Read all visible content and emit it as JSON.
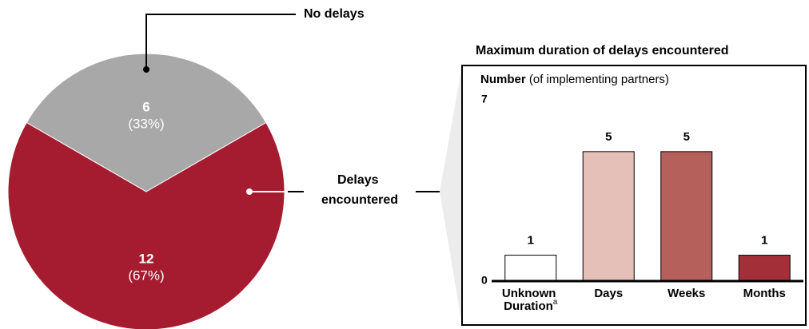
{
  "chart_data": [
    {
      "type": "pie",
      "categories": [
        "No delays",
        "Delays encountered"
      ],
      "values": [
        6,
        12
      ],
      "shares": [
        33,
        67
      ],
      "share_labels": [
        "(33%)",
        "(67%)"
      ],
      "colors": [
        "#a8a8a8",
        "#a51c30"
      ]
    },
    {
      "type": "bar",
      "title": "Maximum duration of delays encountered",
      "y_label": "Number",
      "y_label_note": "(of implementing partners)",
      "categories": [
        "Unknown Duration",
        "Days",
        "Weeks",
        "Months"
      ],
      "category_superscripts": [
        "a",
        null,
        null,
        null
      ],
      "values": [
        1,
        5,
        5,
        1
      ],
      "colors": [
        "#ffffff",
        "#e4c0b9",
        "#b5605a",
        "#a32f38"
      ],
      "ylim": [
        0,
        7
      ],
      "yticks": [
        0,
        7
      ]
    }
  ]
}
